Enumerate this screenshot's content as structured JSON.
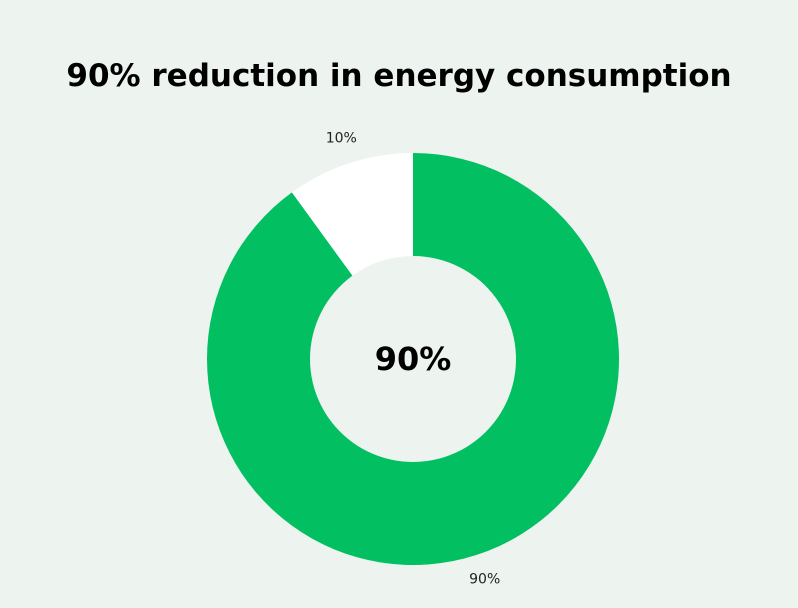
{
  "chart_data": {
    "type": "pie",
    "title": "90% reduction in energy consumption",
    "center_label": "90%",
    "slices": [
      {
        "value": 90,
        "label": "90%",
        "color": "#02bf62"
      },
      {
        "value": 10,
        "label": "10%",
        "color": "#ffffff"
      }
    ],
    "legend": "none",
    "donut": true
  }
}
